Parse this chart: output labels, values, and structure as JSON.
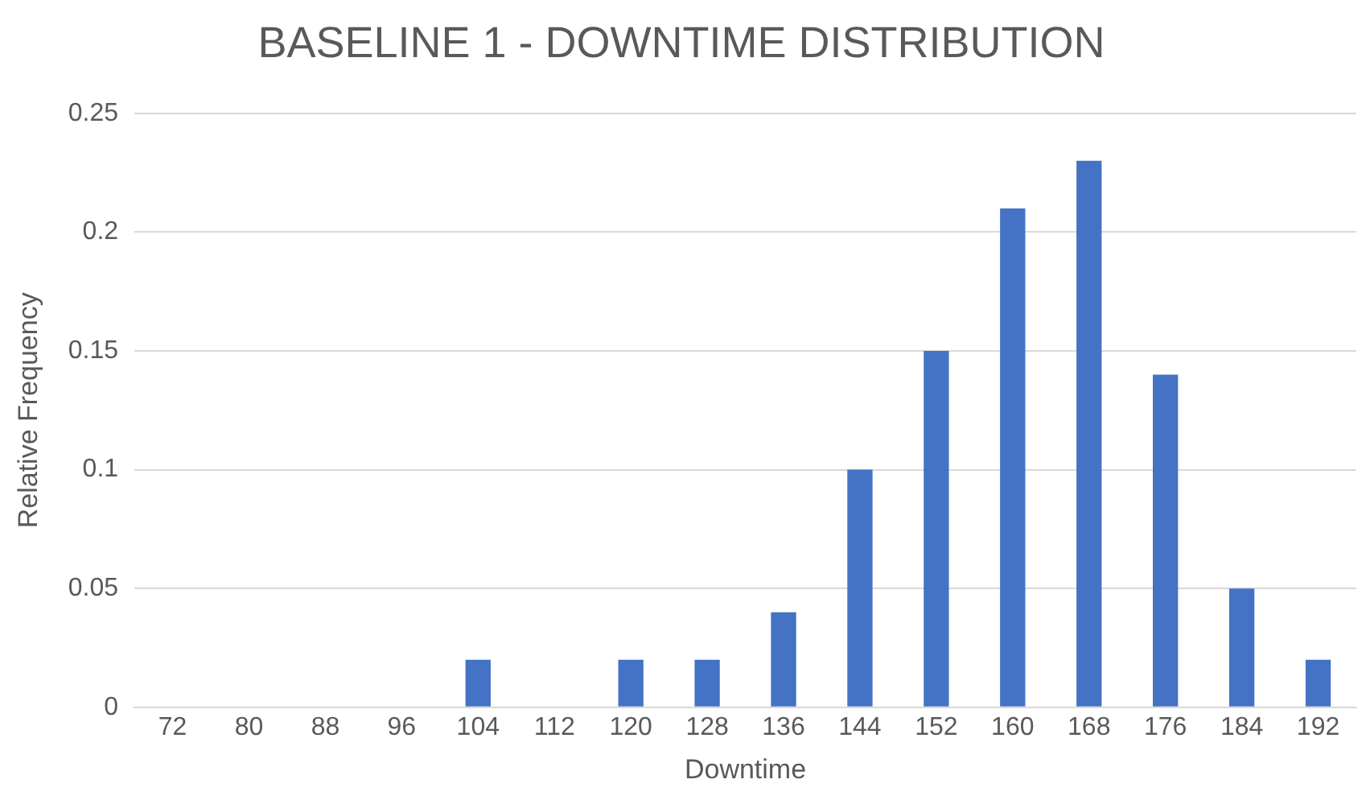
{
  "chart_data": {
    "type": "bar",
    "title": "BASELINE 1 - DOWNTIME DISTRIBUTION",
    "xlabel": "Downtime",
    "ylabel": "Relative Frequency",
    "categories": [
      "72",
      "80",
      "88",
      "96",
      "104",
      "112",
      "120",
      "128",
      "136",
      "144",
      "152",
      "160",
      "168",
      "176",
      "184",
      "192"
    ],
    "values": [
      0,
      0,
      0,
      0,
      0.02,
      0,
      0.02,
      0.02,
      0.04,
      0.1,
      0.15,
      0.21,
      0.23,
      0.14,
      0.05,
      0.02
    ],
    "color": "#4472c4",
    "ylim": [
      0,
      0.25
    ],
    "yticks": [
      0,
      0.05,
      0.1,
      0.15,
      0.2,
      0.25
    ],
    "grid": "y",
    "legend": false
  }
}
